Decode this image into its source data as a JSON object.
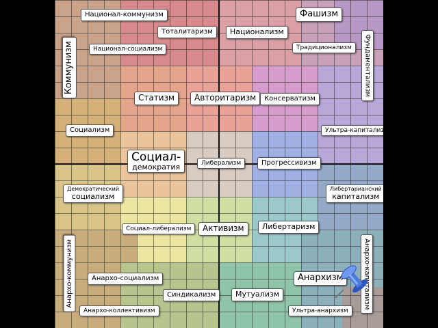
{
  "labels": {
    "national_communism": "Национал-коммунизм",
    "fascism": "Фашизм",
    "totalitarianism": "Тоталитаризм",
    "nationalism": "Национализм",
    "national_socialism": "Национал-социализм",
    "traditionalism": "Традиционализм",
    "communism": "Коммунизм",
    "fundamentalism": "Фундаментализм",
    "statism": "Статизм",
    "authoritarianism": "Авторитаризм",
    "conservatism": "Консерватизм",
    "socialism": "Социализм",
    "ultra_capitalism": "Ультра-капитализм",
    "social_democracy_line1": "Социал-",
    "social_democracy_line2": "демократия",
    "liberalism": "Либерализм",
    "progressivism": "Прогрессивизм",
    "democratic_socialism_line1": "Демократический",
    "democratic_socialism_line2": "социализм",
    "libertarian_capitalism_line1": "Либертарианский",
    "libertarian_capitalism_line2": "капитализм",
    "social_liberalism": "Социал-либерализм",
    "activism": "Активизм",
    "libertarianism": "Либертаризм",
    "anarcho_communism": "Анархо-коммунизм",
    "anarcho_capitalism": "Анархо-капитализм",
    "anarcho_socialism": "Анархо-социализм",
    "anarchism": "Анархизм",
    "syndicalism": "Синдикализм",
    "mutualism": "Мутуализм",
    "anarcho_collectivism": "Анархо-коллективизм",
    "ultra_anarchism": "Ультра-анархизм"
  },
  "colors": {
    "red": "#d9898a",
    "salmon": "#e3a089",
    "peach": "#e8bf98",
    "orange_tan": "#d8a87c",
    "olive": "#c8b07a",
    "pink": "#e8a3a8",
    "magenta": "#d49ac4",
    "violet": "#b79ad0",
    "blue": "#9fb0e0",
    "gray_center": "#d6cbc0",
    "yellow": "#ece7a0",
    "lime": "#c9dba0",
    "green": "#a0c898",
    "teal": "#8fc8c0",
    "slate": "#8fb0c0",
    "pin": "#4a78e0"
  }
}
